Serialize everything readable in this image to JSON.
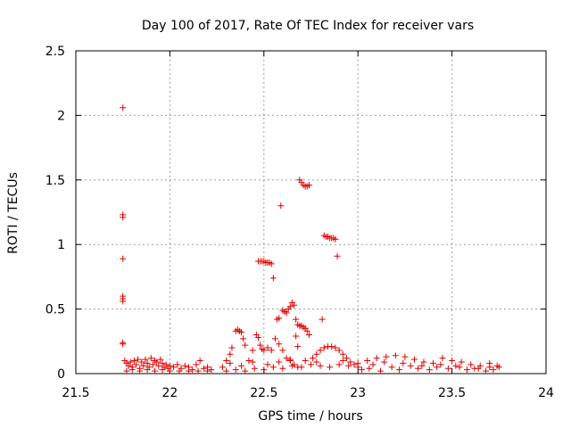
{
  "chart_data": {
    "type": "scatter",
    "title": "Day 100 of 2017, Rate Of TEC Index for receiver vars",
    "xlabel": "GPS time / hours",
    "ylabel": "ROTI / TECUs",
    "xlim": [
      21.5,
      24
    ],
    "ylim": [
      0,
      2.5
    ],
    "xticks": [
      21.5,
      22,
      22.5,
      23,
      23.5,
      24
    ],
    "xtick_labels": [
      "21.5",
      "22",
      "22.5",
      "23",
      "23.5",
      "24"
    ],
    "yticks": [
      0,
      0.5,
      1,
      1.5,
      2,
      2.5
    ],
    "ytick_labels": [
      "0",
      "0.5",
      "1",
      "1.5",
      "2",
      "2.5"
    ],
    "grid": true,
    "marker": "+",
    "color": "#e00000",
    "series": [
      {
        "name": "ROTI",
        "points": [
          [
            21.75,
            2.06
          ],
          [
            21.75,
            1.23
          ],
          [
            21.75,
            1.21
          ],
          [
            21.75,
            0.89
          ],
          [
            21.75,
            0.6
          ],
          [
            21.75,
            0.58
          ],
          [
            21.75,
            0.56
          ],
          [
            21.75,
            0.24
          ],
          [
            21.75,
            0.23
          ],
          [
            21.76,
            0.1
          ],
          [
            21.77,
            0.08
          ],
          [
            21.78,
            0.06
          ],
          [
            21.79,
            0.09
          ],
          [
            21.8,
            0.05
          ],
          [
            21.81,
            0.1
          ],
          [
            21.82,
            0.07
          ],
          [
            21.83,
            0.11
          ],
          [
            21.84,
            0.04
          ],
          [
            21.85,
            0.09
          ],
          [
            21.86,
            0.06
          ],
          [
            21.87,
            0.11
          ],
          [
            21.88,
            0.08
          ],
          [
            21.89,
            0.05
          ],
          [
            21.9,
            0.12
          ],
          [
            21.91,
            0.07
          ],
          [
            21.92,
            0.1
          ],
          [
            21.93,
            0.09
          ],
          [
            21.94,
            0.06
          ],
          [
            21.95,
            0.11
          ],
          [
            21.96,
            0.08
          ],
          [
            21.97,
            0.05
          ],
          [
            21.98,
            0.07
          ],
          [
            21.99,
            0.04
          ],
          [
            22.0,
            0.06
          ],
          [
            22.02,
            0.05
          ],
          [
            22.04,
            0.07
          ],
          [
            22.06,
            0.04
          ],
          [
            22.08,
            0.06
          ],
          [
            22.1,
            0.05
          ],
          [
            22.12,
            0.03
          ],
          [
            22.14,
            0.07
          ],
          [
            22.16,
            0.1
          ],
          [
            22.18,
            0.04
          ],
          [
            22.2,
            0.05
          ],
          [
            22.22,
            0.03
          ],
          [
            21.77,
            0.02
          ],
          [
            21.8,
            0.03
          ],
          [
            21.84,
            0.02
          ],
          [
            21.88,
            0.03
          ],
          [
            21.92,
            0.02
          ],
          [
            21.96,
            0.03
          ],
          [
            22.0,
            0.02
          ],
          [
            22.05,
            0.02
          ],
          [
            22.1,
            0.02
          ],
          [
            22.15,
            0.02
          ],
          [
            22.2,
            0.02
          ],
          [
            22.28,
            0.05
          ],
          [
            22.3,
            0.1
          ],
          [
            22.32,
            0.15
          ],
          [
            22.33,
            0.2
          ],
          [
            22.35,
            0.33
          ],
          [
            22.36,
            0.34
          ],
          [
            22.37,
            0.33
          ],
          [
            22.38,
            0.32
          ],
          [
            22.39,
            0.27
          ],
          [
            22.4,
            0.22
          ],
          [
            22.42,
            0.1
          ],
          [
            22.44,
            0.18
          ],
          [
            22.46,
            0.3
          ],
          [
            22.47,
            0.28
          ],
          [
            22.48,
            0.22
          ],
          [
            22.49,
            0.19
          ],
          [
            22.5,
            0.18
          ],
          [
            22.52,
            0.2
          ],
          [
            22.54,
            0.18
          ],
          [
            22.56,
            0.27
          ],
          [
            22.58,
            0.23
          ],
          [
            22.6,
            0.18
          ],
          [
            22.62,
            0.12
          ],
          [
            22.64,
            0.1
          ],
          [
            22.66,
            0.07
          ],
          [
            22.68,
            0.05
          ],
          [
            22.47,
            0.87
          ],
          [
            22.48,
            0.87
          ],
          [
            22.49,
            0.87
          ],
          [
            22.5,
            0.87
          ],
          [
            22.51,
            0.86
          ],
          [
            22.52,
            0.86
          ],
          [
            22.53,
            0.86
          ],
          [
            22.54,
            0.85
          ],
          [
            22.55,
            0.74
          ],
          [
            22.57,
            0.42
          ],
          [
            22.58,
            0.43
          ],
          [
            22.59,
            1.3
          ],
          [
            22.6,
            0.49
          ],
          [
            22.61,
            0.48
          ],
          [
            22.62,
            0.47
          ],
          [
            22.63,
            0.5
          ],
          [
            22.64,
            0.52
          ],
          [
            22.65,
            0.55
          ],
          [
            22.66,
            0.53
          ],
          [
            22.67,
            0.42
          ],
          [
            22.68,
            0.38
          ],
          [
            22.69,
            0.37
          ],
          [
            22.7,
            0.37
          ],
          [
            22.71,
            0.36
          ],
          [
            22.72,
            0.35
          ],
          [
            22.73,
            0.33
          ],
          [
            22.74,
            0.3
          ],
          [
            22.67,
            0.29
          ],
          [
            22.68,
            0.21
          ],
          [
            22.69,
            1.5
          ],
          [
            22.7,
            1.48
          ],
          [
            22.71,
            1.46
          ],
          [
            22.72,
            1.45
          ],
          [
            22.73,
            1.45
          ],
          [
            22.74,
            1.46
          ],
          [
            22.81,
            0.42
          ],
          [
            22.82,
            1.07
          ],
          [
            22.83,
            1.06
          ],
          [
            22.84,
            1.06
          ],
          [
            22.85,
            1.05
          ],
          [
            22.86,
            1.05
          ],
          [
            22.87,
            1.05
          ],
          [
            22.88,
            1.04
          ],
          [
            22.89,
            0.91
          ],
          [
            22.76,
            0.12
          ],
          [
            22.78,
            0.15
          ],
          [
            22.8,
            0.18
          ],
          [
            22.82,
            0.2
          ],
          [
            22.84,
            0.21
          ],
          [
            22.86,
            0.21
          ],
          [
            22.88,
            0.2
          ],
          [
            22.9,
            0.18
          ],
          [
            22.92,
            0.15
          ],
          [
            22.94,
            0.12
          ],
          [
            22.96,
            0.09
          ],
          [
            22.98,
            0.07
          ],
          [
            23.0,
            0.05
          ],
          [
            22.3,
            0.02
          ],
          [
            22.35,
            0.03
          ],
          [
            22.4,
            0.02
          ],
          [
            22.45,
            0.04
          ],
          [
            22.5,
            0.03
          ],
          [
            22.55,
            0.05
          ],
          [
            22.6,
            0.04
          ],
          [
            22.65,
            0.06
          ],
          [
            22.7,
            0.05
          ],
          [
            22.75,
            0.07
          ],
          [
            22.8,
            0.06
          ],
          [
            22.85,
            0.05
          ],
          [
            22.9,
            0.07
          ],
          [
            22.95,
            0.06
          ],
          [
            23.0,
            0.08
          ],
          [
            23.05,
            0.1
          ],
          [
            23.1,
            0.12
          ],
          [
            23.15,
            0.13
          ],
          [
            23.2,
            0.14
          ],
          [
            23.25,
            0.13
          ],
          [
            23.3,
            0.11
          ],
          [
            23.35,
            0.09
          ],
          [
            23.4,
            0.08
          ],
          [
            23.45,
            0.12
          ],
          [
            23.5,
            0.1
          ],
          [
            23.55,
            0.09
          ],
          [
            23.6,
            0.07
          ],
          [
            23.65,
            0.06
          ],
          [
            23.7,
            0.08
          ],
          [
            23.75,
            0.05
          ],
          [
            23.02,
            0.03
          ],
          [
            23.06,
            0.04
          ],
          [
            23.12,
            0.02
          ],
          [
            23.18,
            0.05
          ],
          [
            23.22,
            0.03
          ],
          [
            23.28,
            0.06
          ],
          [
            23.32,
            0.04
          ],
          [
            23.38,
            0.03
          ],
          [
            23.42,
            0.05
          ],
          [
            23.48,
            0.04
          ],
          [
            23.52,
            0.06
          ],
          [
            23.58,
            0.03
          ],
          [
            23.62,
            0.04
          ],
          [
            23.68,
            0.02
          ],
          [
            23.72,
            0.03
          ],
          [
            23.74,
            0.06
          ],
          [
            22.32,
            0.08
          ],
          [
            22.38,
            0.06
          ],
          [
            22.44,
            0.09
          ],
          [
            22.52,
            0.07
          ],
          [
            22.58,
            0.09
          ],
          [
            22.64,
            0.11
          ],
          [
            22.72,
            0.1
          ],
          [
            22.78,
            0.09
          ],
          [
            22.92,
            0.1
          ],
          [
            23.08,
            0.07
          ],
          [
            23.14,
            0.09
          ],
          [
            23.24,
            0.08
          ],
          [
            23.34,
            0.06
          ],
          [
            23.44,
            0.07
          ],
          [
            23.54,
            0.05
          ],
          [
            23.64,
            0.04
          ],
          [
            23.7,
            0.05
          ]
        ]
      }
    ]
  }
}
